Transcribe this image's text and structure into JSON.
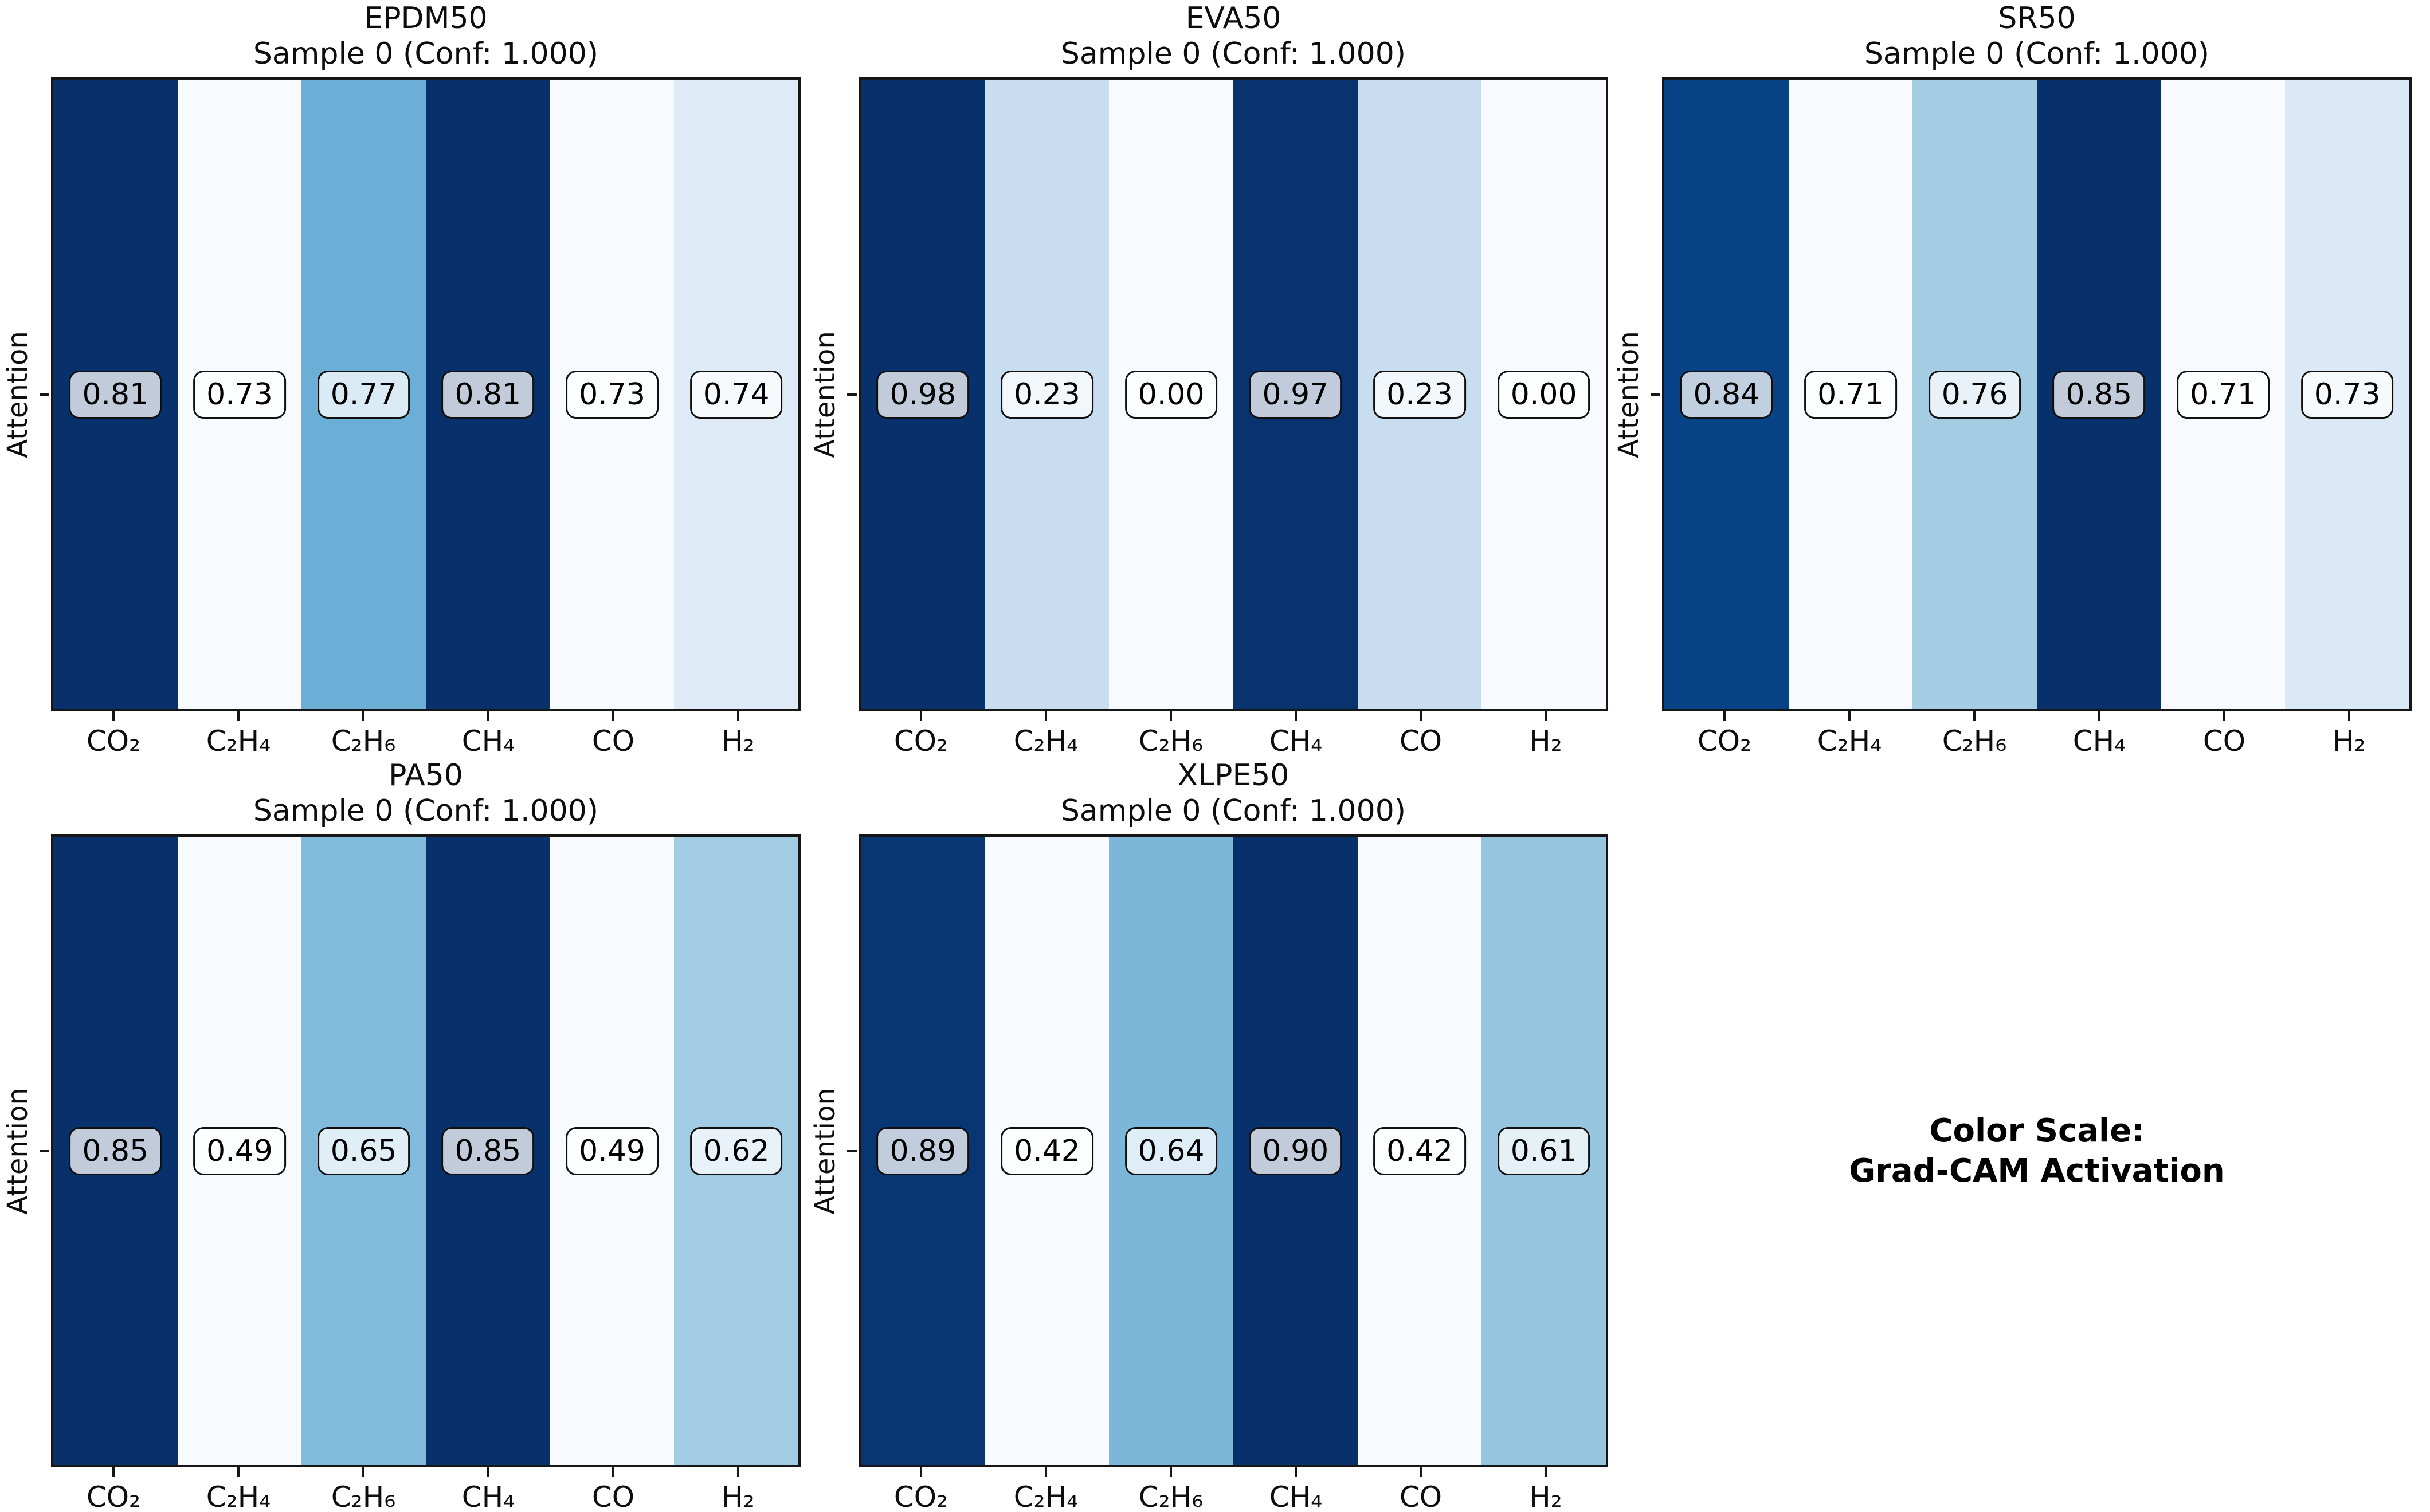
{
  "figure": {
    "background": "#ffffff",
    "note_line1": "Color Scale:",
    "note_line2": "Grad-CAM Activation"
  },
  "chart_data": {
    "type": "heatmap",
    "ylabel": "Attention",
    "categories": [
      "CO₂",
      "C₂H₄",
      "C₂H₆",
      "CH₄",
      "CO",
      "H₂"
    ],
    "colormap": {
      "name": "Blues",
      "stops": [
        "#f7fbff",
        "#deebf7",
        "#c6dbef",
        "#9ecae1",
        "#6baed6",
        "#4292c6",
        "#2171b5",
        "#08519c",
        "#08306b"
      ]
    },
    "normalization": "per-panel min-max",
    "chip_style": {
      "background": "rgba(255,255,255,0.75)",
      "border": "#101010"
    },
    "panels": [
      {
        "title": "EPDM50",
        "subtitle": "Sample 0 (Conf: 1.000)",
        "values": [
          0.81,
          0.73,
          0.77,
          0.81,
          0.73,
          0.74
        ],
        "labels": [
          "0.81",
          "0.73",
          "0.77",
          "0.81",
          "0.73",
          "0.74"
        ]
      },
      {
        "title": "EVA50",
        "subtitle": "Sample 0 (Conf: 1.000)",
        "values": [
          0.98,
          0.23,
          0.0,
          0.97,
          0.23,
          0.0
        ],
        "labels": [
          "0.98",
          "0.23",
          "0.00",
          "0.97",
          "0.23",
          "0.00"
        ]
      },
      {
        "title": "SR50",
        "subtitle": "Sample 0 (Conf: 1.000)",
        "values": [
          0.84,
          0.71,
          0.76,
          0.85,
          0.71,
          0.73
        ],
        "labels": [
          "0.84",
          "0.71",
          "0.76",
          "0.85",
          "0.71",
          "0.73"
        ]
      },
      {
        "title": "PA50",
        "subtitle": "Sample 0 (Conf: 1.000)",
        "values": [
          0.85,
          0.49,
          0.65,
          0.85,
          0.49,
          0.62
        ],
        "labels": [
          "0.85",
          "0.49",
          "0.65",
          "0.85",
          "0.49",
          "0.62"
        ]
      },
      {
        "title": "XLPE50",
        "subtitle": "Sample 0 (Conf: 1.000)",
        "values": [
          0.89,
          0.42,
          0.64,
          0.9,
          0.42,
          0.61
        ],
        "labels": [
          "0.89",
          "0.42",
          "0.64",
          "0.90",
          "0.42",
          "0.61"
        ]
      }
    ]
  }
}
